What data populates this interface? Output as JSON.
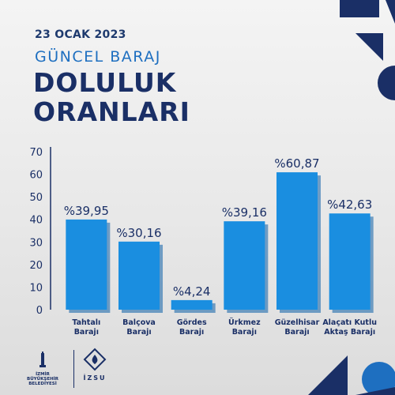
{
  "header": {
    "date": "23 OCAK 2023",
    "subtitle": "GÜNCEL BARAJ",
    "title_line1": "DOLULUK",
    "title_line2": "ORANLARI"
  },
  "logos": {
    "left_line1": "İZMİR",
    "left_line2": "BÜYÜKŞEHİR",
    "left_line3": "BELEDİYESİ",
    "right": "İZSU"
  },
  "colors": {
    "bar": "#1a8ee0",
    "bar_shadow": "#0b5fa8",
    "navy": "#1a2f66",
    "accent": "#1e6fc0"
  },
  "chart_data": {
    "type": "bar",
    "categories": [
      [
        "Tahtalı",
        "Barajı"
      ],
      [
        "Balçova",
        "Barajı"
      ],
      [
        "Gördes",
        "Barajı"
      ],
      [
        "Ürkmez",
        "Barajı"
      ],
      [
        "Güzelhisar",
        "Barajı"
      ],
      [
        "Alaçatı Kutlu",
        "Aktaş Barajı"
      ]
    ],
    "values": [
      39.95,
      30.16,
      4.24,
      39.16,
      60.87,
      42.63
    ],
    "data_labels": [
      "%39,95",
      "%30,16",
      "%4,24",
      "%39,16",
      "%60,87",
      "%42,63"
    ],
    "ylim": [
      0,
      70
    ],
    "yticks": [
      0,
      10,
      20,
      30,
      40,
      50,
      60,
      70
    ],
    "grid": false
  }
}
